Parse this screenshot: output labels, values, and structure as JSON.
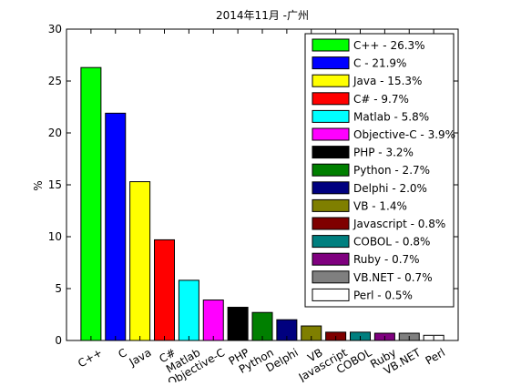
{
  "chart_data": {
    "type": "bar",
    "title": "2014年11月 -广州",
    "xlabel": "",
    "ylabel": "%",
    "ylim": [
      0,
      30
    ],
    "yticks": [
      0,
      5,
      10,
      15,
      20,
      25,
      30
    ],
    "grid": false,
    "legend_position": "top-right",
    "categories": [
      "C++",
      "C",
      "Java",
      "C#",
      "Matlab",
      "Objective-C",
      "PHP",
      "Python",
      "Delphi",
      "VB",
      "Javascript",
      "COBOL",
      "Ruby",
      "VB.NET",
      "Perl"
    ],
    "values": [
      26.3,
      21.9,
      15.3,
      9.7,
      5.8,
      3.9,
      3.2,
      2.7,
      2.0,
      1.4,
      0.8,
      0.8,
      0.7,
      0.7,
      0.5
    ],
    "colors": [
      "#00ff00",
      "#0000ff",
      "#ffff00",
      "#ff0000",
      "#00ffff",
      "#ff00ff",
      "#000000",
      "#007f00",
      "#00007f",
      "#7f7f00",
      "#7f0000",
      "#007f7f",
      "#7f007f",
      "#7f7f7f",
      "#ffffff"
    ],
    "legend": [
      "C++ - 26.3%",
      "C - 21.9%",
      "Java - 15.3%",
      "C# - 9.7%",
      "Matlab - 5.8%",
      "Objective-C - 3.9%",
      "PHP - 3.2%",
      "Python - 2.7%",
      "Delphi - 2.0%",
      "VB - 1.4%",
      "Javascript - 0.8%",
      "COBOL - 0.8%",
      "Ruby - 0.7%",
      "VB.NET - 0.7%",
      "Perl - 0.5%"
    ]
  }
}
